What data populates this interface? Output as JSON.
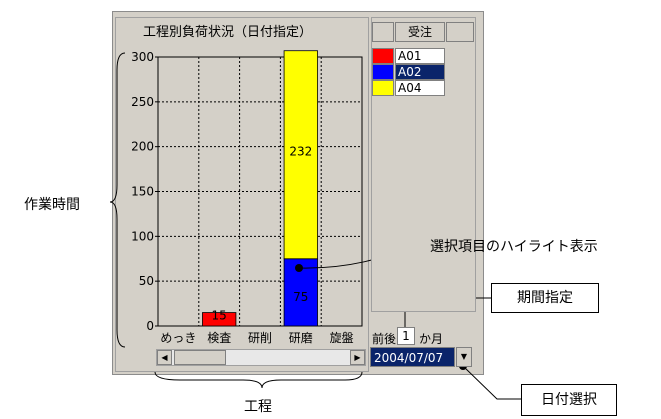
{
  "chart": {
    "title": "工程別負荷状況（日付指定）"
  },
  "chart_data": {
    "type": "bar",
    "stacked": true,
    "categories": [
      "めっき",
      "検査",
      "研削",
      "研磨",
      "旋盤"
    ],
    "series": [
      {
        "name": "A02",
        "color": "#0000ff",
        "values": [
          0,
          0,
          0,
          75,
          0
        ]
      },
      {
        "name": "A01",
        "color": "#ff0000",
        "values": [
          0,
          15,
          0,
          0,
          0
        ]
      },
      {
        "name": "A04",
        "color": "#ffff00",
        "values": [
          0,
          0,
          0,
          232,
          0
        ]
      }
    ],
    "data_labels": [
      {
        "category": "検査",
        "text": "15"
      },
      {
        "category": "研磨",
        "text": "75"
      },
      {
        "category": "研磨",
        "text": "232"
      }
    ],
    "y_ticks": [
      "300",
      "250",
      "200",
      "150",
      "100",
      "50",
      "0"
    ],
    "ylim": [
      0,
      300
    ],
    "grid": true
  },
  "legend": {
    "header": "受注",
    "items": [
      {
        "label": "A01",
        "color": "#ff0000",
        "selected": false
      },
      {
        "label": "A02",
        "color": "#0000ff",
        "selected": true
      },
      {
        "label": "A04",
        "color": "#ffff00",
        "selected": false
      }
    ]
  },
  "period": {
    "prefix": "前後",
    "value": "1",
    "unit": "か月"
  },
  "date_select": {
    "value": "2004/07/07"
  },
  "annotations": {
    "y_axis": "作業時間",
    "x_axis": "工程",
    "highlight": "選択項目のハイライト表示",
    "period": "期間指定",
    "date": "日付選択"
  }
}
